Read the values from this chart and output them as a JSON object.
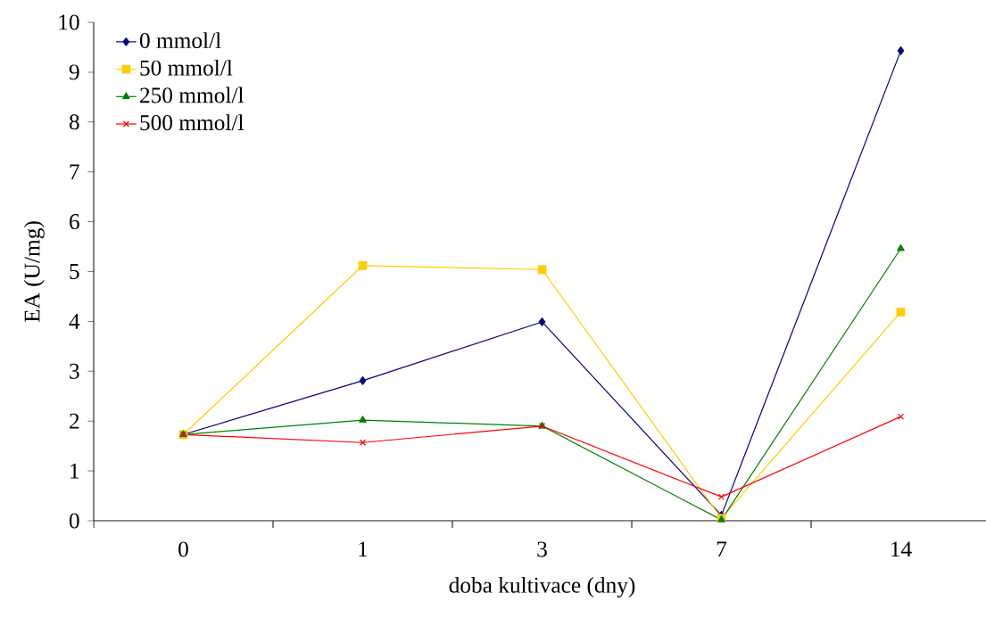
{
  "chart_data": {
    "type": "line",
    "xlabel": "doba kultivace (dny)",
    "ylabel": "EA (U/mg)",
    "categories": [
      "0",
      "1",
      "3",
      "7",
      "14"
    ],
    "series": [
      {
        "name": "0 mmol/l",
        "color": "#000080",
        "marker": "diamond",
        "values": [
          1.73,
          2.81,
          3.99,
          0.11,
          9.43
        ]
      },
      {
        "name": "50 mmol/l",
        "color": "#ffcc00",
        "marker": "square",
        "values": [
          1.73,
          5.12,
          5.04,
          0.05,
          4.19
        ]
      },
      {
        "name": "250 mmol/l",
        "color": "#008000",
        "marker": "triangle",
        "values": [
          1.73,
          2.02,
          1.9,
          0.02,
          5.46
        ]
      },
      {
        "name": "500 mmol/l",
        "color": "#ff0000",
        "marker": "cross",
        "values": [
          1.73,
          1.57,
          1.9,
          0.48,
          2.09
        ]
      }
    ],
    "ylim": [
      0,
      10
    ],
    "yticks": [
      0,
      1,
      2,
      3,
      4,
      5,
      6,
      7,
      8,
      9,
      10
    ],
    "legend": "top left",
    "grid": false,
    "line_style": "solid"
  }
}
